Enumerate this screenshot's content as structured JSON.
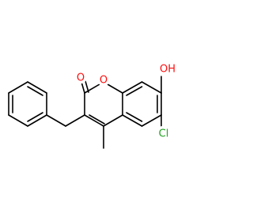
{
  "atoms": [
    {
      "label": "O"
    },
    {
      "label": "O"
    },
    {
      "label": "OH"
    },
    {
      "label": "Cl"
    }
  ]
}
